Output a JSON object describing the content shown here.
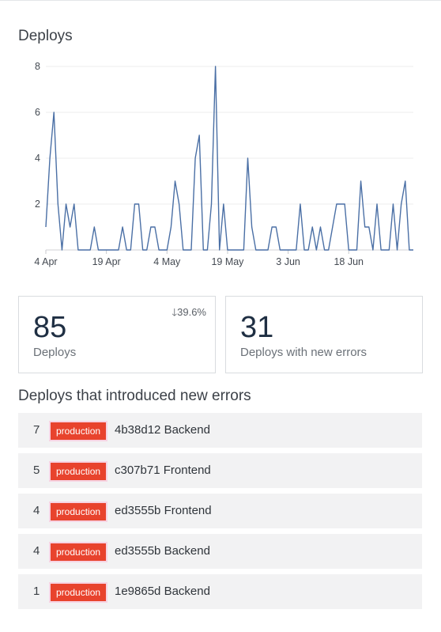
{
  "title": "Deploys",
  "chart_data": {
    "type": "line",
    "title": "",
    "xlabel": "",
    "ylabel": "",
    "ylim": [
      0,
      8
    ],
    "yticks": [
      2,
      4,
      6,
      8
    ],
    "xtick_labels": [
      "4 Apr",
      "19 Apr",
      "4 May",
      "19 May",
      "3 Jun",
      "18 Jun"
    ],
    "x_start": "4 Apr",
    "grid": true,
    "color": "#4a6fa5",
    "series": [
      {
        "values": [
          1,
          4,
          6,
          2,
          0,
          2,
          1,
          2,
          0,
          0,
          0,
          0,
          1,
          0,
          0,
          0,
          0,
          0,
          0,
          1,
          0,
          0,
          2,
          2,
          0,
          0,
          1,
          1,
          0,
          0,
          0,
          1,
          3,
          2,
          0,
          0,
          0,
          4,
          5,
          0,
          0,
          2,
          8,
          0,
          2,
          0,
          0,
          0,
          0,
          0,
          4,
          1,
          0,
          0,
          0,
          0,
          1,
          1,
          0,
          0,
          0,
          0,
          0,
          2,
          0,
          0,
          1,
          0,
          1,
          0,
          0,
          1,
          2,
          2,
          2,
          0,
          0,
          0,
          3,
          1,
          1,
          0,
          2,
          0,
          0,
          0,
          2,
          0,
          2,
          3,
          0,
          0
        ]
      }
    ]
  },
  "stats": [
    {
      "value": "85",
      "label": "Deploys",
      "change": "39.6%"
    },
    {
      "value": "31",
      "label": "Deploys with new errors"
    }
  ],
  "list_title": "Deploys that introduced new errors",
  "deploys": [
    {
      "count": "7",
      "env": "production",
      "desc": "4b38d12 Backend"
    },
    {
      "count": "5",
      "env": "production",
      "desc": "c307b71 Frontend"
    },
    {
      "count": "4",
      "env": "production",
      "desc": "ed3555b Frontend"
    },
    {
      "count": "4",
      "env": "production",
      "desc": "ed3555b Backend"
    },
    {
      "count": "1",
      "env": "production",
      "desc": "1e9865d Backend"
    }
  ]
}
